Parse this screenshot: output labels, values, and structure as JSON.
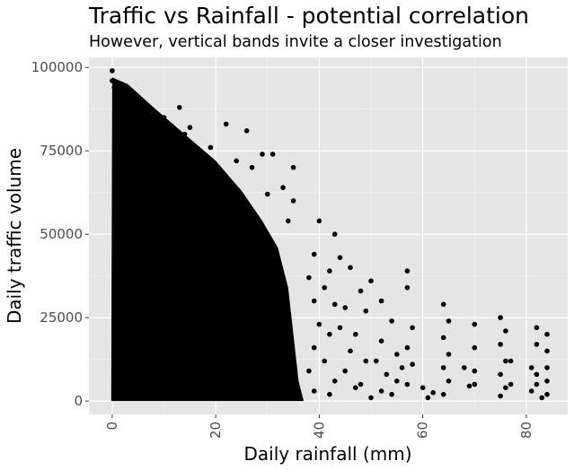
{
  "chart_data": {
    "type": "scatter",
    "title": "Traffic vs Rainfall - potential correlation",
    "subtitle": "However, vertical bands invite a closer investigation",
    "xlabel": "Daily rainfall (mm)",
    "ylabel": "Daily traffic volume",
    "xlim": [
      -4.5,
      88
    ],
    "ylim": [
      -4000,
      103000
    ],
    "x_ticks": [
      0,
      20,
      40,
      60,
      80
    ],
    "y_ticks": [
      0,
      25000,
      50000,
      75000,
      100000
    ],
    "x_tick_labels": [
      "0",
      "20",
      "40",
      "60",
      "80"
    ],
    "y_tick_labels": [
      "0",
      "25000",
      "50000",
      "75000",
      "100000"
    ],
    "grid": true,
    "panel_color": "#e5e5e5",
    "point_color": "#000000",
    "points": [
      [
        0,
        99000
      ],
      [
        0,
        96000
      ],
      [
        0.4,
        94000
      ],
      [
        1,
        93000
      ],
      [
        2,
        91000
      ],
      [
        3,
        92000
      ],
      [
        4,
        89000
      ],
      [
        5,
        90000
      ],
      [
        6,
        88000
      ],
      [
        7,
        86000
      ],
      [
        8,
        87000
      ],
      [
        9,
        84000
      ],
      [
        10,
        85000
      ],
      [
        11,
        82000
      ],
      [
        13,
        88000
      ],
      [
        14,
        80000
      ],
      [
        15,
        82000
      ],
      [
        17,
        75000
      ],
      [
        19,
        76000
      ],
      [
        22,
        83000
      ],
      [
        24,
        72000
      ],
      [
        26,
        81000
      ],
      [
        27,
        70000
      ],
      [
        29,
        74000
      ],
      [
        30,
        62000
      ],
      [
        31,
        74000
      ],
      [
        33,
        64000
      ],
      [
        34,
        54000
      ],
      [
        35,
        70000
      ],
      [
        35,
        60000
      ],
      [
        40,
        54000
      ],
      [
        43,
        50000
      ],
      [
        44,
        43000
      ],
      [
        46,
        40000
      ],
      [
        50,
        36000
      ],
      [
        52,
        30000
      ],
      [
        54,
        24000
      ],
      [
        57,
        39000
      ],
      [
        39,
        44000
      ],
      [
        38,
        37000
      ],
      [
        39,
        30000
      ],
      [
        40,
        23000
      ],
      [
        39,
        16000
      ],
      [
        38,
        9000
      ],
      [
        39,
        3000
      ],
      [
        42,
        39000
      ],
      [
        41,
        34000
      ],
      [
        43,
        29000
      ],
      [
        42,
        20000
      ],
      [
        41,
        12000
      ],
      [
        43,
        6000
      ],
      [
        42,
        2000
      ],
      [
        45,
        28000
      ],
      [
        44,
        22000
      ],
      [
        46,
        15000
      ],
      [
        45,
        9000
      ],
      [
        47,
        4000
      ],
      [
        48,
        33000
      ],
      [
        49,
        27000
      ],
      [
        47,
        20000
      ],
      [
        49,
        12000
      ],
      [
        48,
        5000
      ],
      [
        50,
        1000
      ],
      [
        52,
        18000
      ],
      [
        51,
        12000
      ],
      [
        53,
        8000
      ],
      [
        52,
        3000
      ],
      [
        55,
        14000
      ],
      [
        56,
        10000
      ],
      [
        55,
        6000
      ],
      [
        54,
        2000
      ],
      [
        57,
        34000
      ],
      [
        58,
        22000
      ],
      [
        57,
        16000
      ],
      [
        58,
        11000
      ],
      [
        57,
        5000
      ],
      [
        60,
        4000
      ],
      [
        61,
        1000
      ],
      [
        62,
        2500
      ],
      [
        64,
        29000
      ],
      [
        65,
        24000
      ],
      [
        64,
        19000
      ],
      [
        65,
        14000
      ],
      [
        64,
        10000
      ],
      [
        65,
        6000
      ],
      [
        64,
        2000
      ],
      [
        68,
        10000
      ],
      [
        69,
        4500
      ],
      [
        70,
        23000
      ],
      [
        70,
        16000
      ],
      [
        70,
        9000
      ],
      [
        70,
        5000
      ],
      [
        75,
        25000
      ],
      [
        76,
        21000
      ],
      [
        75,
        17000
      ],
      [
        76,
        12000
      ],
      [
        75,
        8000
      ],
      [
        76,
        4000
      ],
      [
        75,
        1500
      ],
      [
        77,
        12000
      ],
      [
        77,
        5000
      ],
      [
        81,
        3000
      ],
      [
        81,
        10000
      ],
      [
        82,
        5000
      ],
      [
        82,
        22000
      ],
      [
        82,
        17000
      ],
      [
        82,
        8000
      ],
      [
        83,
        1000
      ],
      [
        84,
        20000
      ],
      [
        84,
        15000
      ],
      [
        84,
        10000
      ],
      [
        84,
        6000
      ],
      [
        84,
        2000
      ]
    ]
  }
}
